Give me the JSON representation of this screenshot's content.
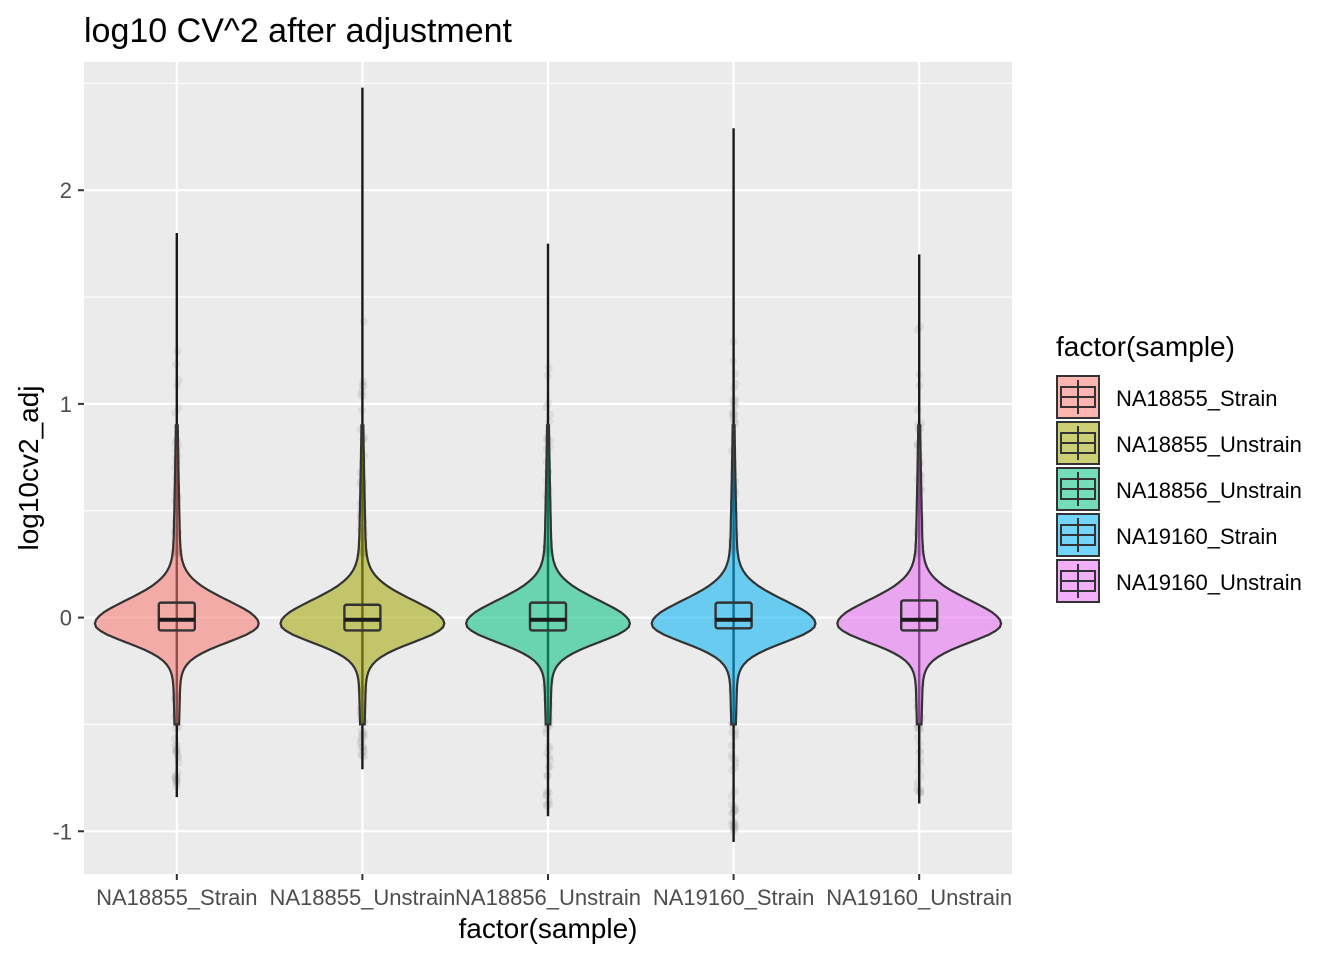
{
  "chart_data": {
    "type": "violin",
    "title": "log10 CV^2 after adjustment",
    "xlabel": "factor(sample)",
    "ylabel": "log10cv2_adj",
    "categories": [
      "NA18855_Strain",
      "NA18855_Unstrain",
      "NA18856_Unstrain",
      "NA19160_Strain",
      "NA19160_Unstrain"
    ],
    "ylim": [
      -1.2,
      2.6
    ],
    "yticks": [
      -1,
      0,
      1,
      2
    ],
    "ytick_labels": [
      "-1",
      "0",
      "1",
      "2"
    ],
    "grid": true,
    "legend": {
      "title": "factor(sample)",
      "placement": "right"
    },
    "series": [
      {
        "name": "NA18855_Strain",
        "color": "#F8766D",
        "min": -0.84,
        "q1": -0.06,
        "median": -0.01,
        "q3": 0.07,
        "max": 1.8,
        "density_peak": -0.03
      },
      {
        "name": "NA18855_Unstrain",
        "color": "#A3A500",
        "min": -0.71,
        "q1": -0.06,
        "median": -0.01,
        "q3": 0.06,
        "max": 2.48,
        "density_peak": -0.03
      },
      {
        "name": "NA18856_Unstrain",
        "color": "#00BF7D",
        "min": -0.93,
        "q1": -0.06,
        "median": -0.01,
        "q3": 0.07,
        "max": 1.75,
        "density_peak": -0.03
      },
      {
        "name": "NA19160_Strain",
        "color": "#00B0F6",
        "min": -1.05,
        "q1": -0.05,
        "median": -0.01,
        "q3": 0.07,
        "max": 2.29,
        "density_peak": -0.03
      },
      {
        "name": "NA19160_Unstrain",
        "color": "#E76BF3",
        "min": -0.87,
        "q1": -0.06,
        "median": -0.01,
        "q3": 0.08,
        "max": 1.7,
        "density_peak": -0.03
      }
    ]
  }
}
